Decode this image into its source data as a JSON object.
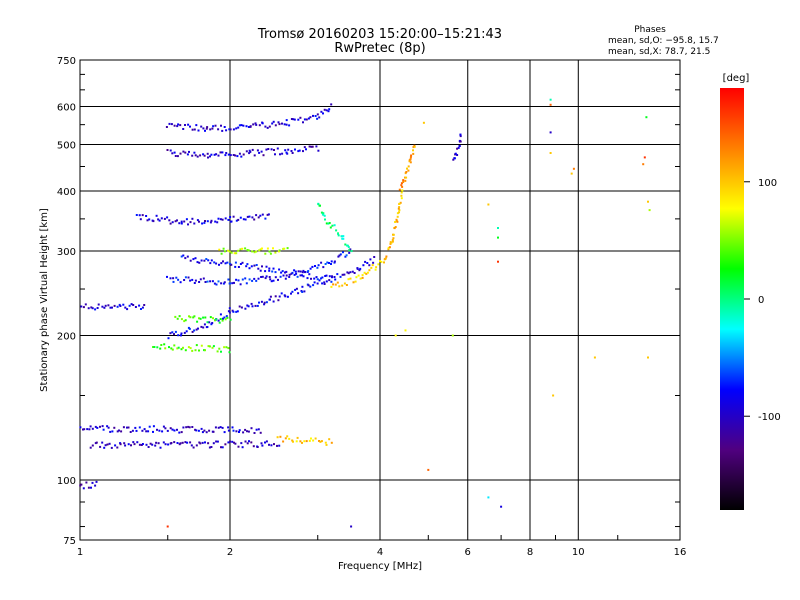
{
  "chart_data": {
    "type": "scatter",
    "title": "Tromsø 20160203 15:20:00–15:21:43",
    "subtitle": "RwPretec (8p)",
    "xlabel": "Frequency [MHz]",
    "ylabel": "Stationary phase Virtual Height [km]",
    "x_scale": "log2",
    "y_scale": "log",
    "xlim": [
      1,
      16
    ],
    "ylim": [
      75,
      750
    ],
    "x_ticks": [
      1,
      2,
      4,
      6,
      8,
      10,
      16
    ],
    "y_ticks": [
      75,
      100,
      200,
      300,
      400,
      500,
      600,
      750
    ],
    "phase_stats": {
      "heading": "Phases",
      "line_o": "mean, sd,O: −95.8, 15.7",
      "line_x": "mean, sd,X:  78.7, 21.5"
    },
    "colorbar": {
      "label": "[deg]",
      "range": [
        -180,
        180
      ],
      "ticks": [
        100,
        0,
        -100
      ],
      "colormap": [
        "#000000",
        "#500080",
        "#0000ff",
        "#00ffff",
        "#00ff00",
        "#ffff00",
        "#ff8000",
        "#ff0000"
      ]
    },
    "series": [
      {
        "type": "line",
        "phase": -95,
        "from": [
          1.0,
          230
        ],
        "to": [
          1.35,
          229
        ]
      },
      {
        "type": "line",
        "phase": -100,
        "from": [
          1.05,
          118
        ],
        "to": [
          2.5,
          119
        ]
      },
      {
        "type": "line",
        "phase": -95,
        "from": [
          1.0,
          128
        ],
        "to": [
          2.3,
          127
        ]
      },
      {
        "type": "curve",
        "phase": -90,
        "points": [
          [
            1.5,
            200
          ],
          [
            1.8,
            210
          ],
          [
            2.0,
            225
          ],
          [
            2.4,
            237
          ],
          [
            2.8,
            250
          ],
          [
            3.2,
            262
          ],
          [
            3.6,
            275
          ],
          [
            3.9,
            288
          ]
        ]
      },
      {
        "type": "curve",
        "phase": -85,
        "points": [
          [
            1.6,
            290
          ],
          [
            2.0,
            282
          ],
          [
            2.4,
            275
          ],
          [
            2.8,
            268
          ],
          [
            3.2,
            262
          ]
        ]
      },
      {
        "type": "curve",
        "phase": -80,
        "points": [
          [
            1.5,
            262
          ],
          [
            2.0,
            258
          ],
          [
            2.4,
            262
          ],
          [
            2.8,
            270
          ],
          [
            3.2,
            285
          ],
          [
            3.5,
            300
          ]
        ]
      },
      {
        "type": "curve",
        "phase": -95,
        "points": [
          [
            1.3,
            355
          ],
          [
            1.6,
            345
          ],
          [
            2.0,
            350
          ],
          [
            2.4,
            355
          ]
        ]
      },
      {
        "type": "curve",
        "phase": -100,
        "points": [
          [
            1.5,
            480
          ],
          [
            1.8,
            472
          ],
          [
            2.2,
            480
          ],
          [
            2.6,
            485
          ],
          [
            3.0,
            490
          ]
        ]
      },
      {
        "type": "curve",
        "phase": -95,
        "points": [
          [
            1.5,
            545
          ],
          [
            1.8,
            540
          ],
          [
            2.2,
            545
          ],
          [
            2.6,
            555
          ],
          [
            3.0,
            570
          ],
          [
            3.2,
            600
          ]
        ]
      },
      {
        "type": "curve",
        "phase": 100,
        "points": [
          [
            3.2,
            252
          ],
          [
            3.7,
            265
          ],
          [
            4.1,
            290
          ],
          [
            4.25,
            320
          ],
          [
            4.35,
            360
          ],
          [
            4.42,
            400
          ]
        ]
      },
      {
        "type": "curve",
        "phase": 120,
        "points": [
          [
            4.4,
            400
          ],
          [
            4.5,
            430
          ],
          [
            4.6,
            460
          ],
          [
            4.7,
            500
          ]
        ]
      },
      {
        "type": "line",
        "phase": 100,
        "from": [
          2.5,
          122
        ],
        "to": [
          3.2,
          120
        ]
      },
      {
        "type": "line",
        "phase": 40,
        "from": [
          1.4,
          190
        ],
        "to": [
          2.0,
          187
        ]
      },
      {
        "type": "line",
        "phase": 30,
        "from": [
          1.55,
          218
        ],
        "to": [
          2.0,
          215
        ]
      },
      {
        "type": "curve",
        "phase": -100,
        "points": [
          [
            5.6,
            460
          ],
          [
            5.7,
            480
          ],
          [
            5.8,
            505
          ],
          [
            5.8,
            530
          ]
        ]
      },
      {
        "type": "line",
        "phase": 60,
        "from": [
          1.9,
          300
        ],
        "to": [
          2.6,
          300
        ]
      },
      {
        "type": "curve",
        "phase": 0,
        "points": [
          [
            3.0,
            380
          ],
          [
            3.1,
            350
          ],
          [
            3.3,
            330
          ],
          [
            3.5,
            300
          ]
        ]
      },
      {
        "type": "line",
        "phase": -100,
        "from": [
          1.0,
          97
        ],
        "to": [
          1.08,
          98
        ]
      }
    ],
    "points": [
      [
        1.5,
        80,
        160
      ],
      [
        5.0,
        105,
        140
      ],
      [
        6.6,
        92,
        -30
      ],
      [
        7.0,
        88,
        -90
      ],
      [
        6.9,
        335,
        -10
      ],
      [
        6.9,
        320,
        20
      ],
      [
        6.9,
        285,
        160
      ],
      [
        6.6,
        375,
        100
      ],
      [
        8.8,
        620,
        -10
      ],
      [
        8.8,
        605,
        140
      ],
      [
        8.8,
        530,
        -100
      ],
      [
        8.8,
        480,
        100
      ],
      [
        8.9,
        150,
        100
      ],
      [
        9.8,
        445,
        130
      ],
      [
        9.7,
        435,
        100
      ],
      [
        10.8,
        180,
        100
      ],
      [
        13.7,
        570,
        20
      ],
      [
        13.6,
        470,
        160
      ],
      [
        13.5,
        455,
        130
      ],
      [
        13.8,
        380,
        100
      ],
      [
        13.9,
        365,
        60
      ],
      [
        13.8,
        180,
        100
      ],
      [
        5.6,
        200,
        60
      ],
      [
        4.9,
        555,
        100
      ],
      [
        3.5,
        80,
        -100
      ],
      [
        4.5,
        205,
        80
      ],
      [
        4.3,
        200,
        80
      ]
    ]
  }
}
